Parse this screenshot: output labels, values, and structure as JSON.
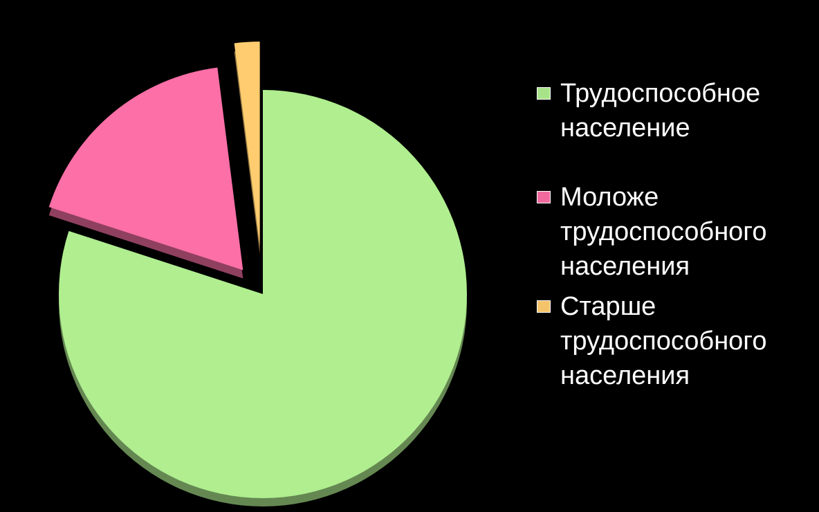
{
  "chart_data": {
    "type": "pie",
    "categories": [
      "Трудоспособное население",
      "Моложе трудоспособного населения",
      "Старше трудоспособного населения"
    ],
    "values": [
      80,
      18,
      2
    ],
    "colors": [
      "#a8e389",
      "#f06a9f",
      "#f4c36a"
    ],
    "legend": "right"
  }
}
